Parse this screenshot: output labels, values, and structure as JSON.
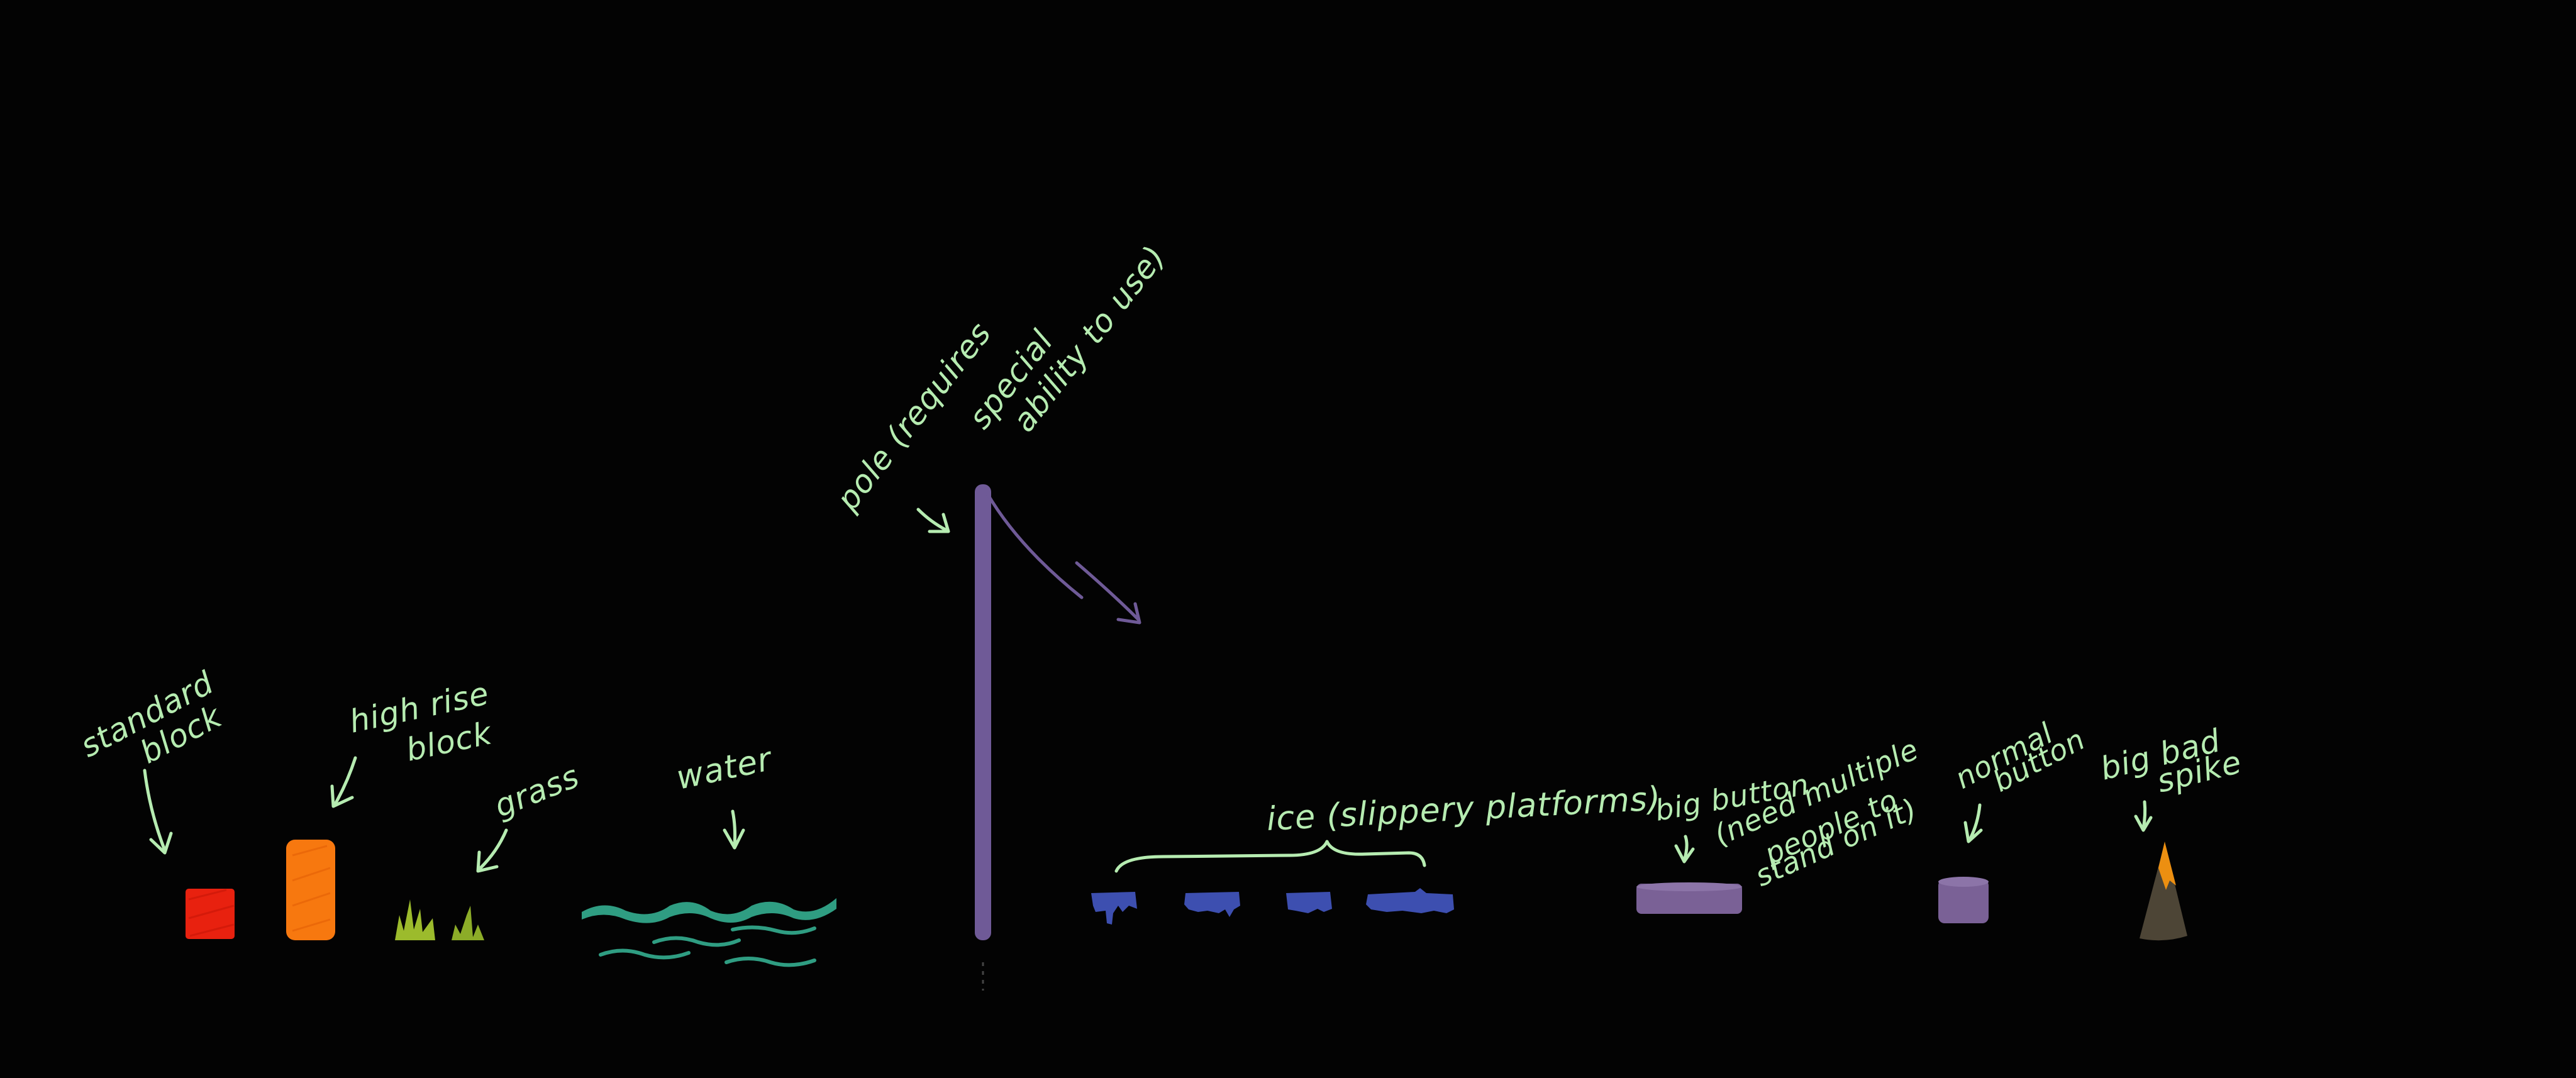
{
  "labels": {
    "standard_block_1": "standard",
    "standard_block_2": "block",
    "high_rise_1": "high rise",
    "high_rise_2": "block",
    "grass": "grass",
    "water": "water",
    "pole_1": "pole (requires",
    "pole_2": "special",
    "pole_3": "ability to use)",
    "ice": "ice (slippery platforms)",
    "big_button_1": "big button",
    "big_button_2": "(need multiple",
    "big_button_3": "people to",
    "big_button_4": "stand on it)",
    "normal_button_1": "normal",
    "normal_button_2": "button",
    "spike_1": "big bad",
    "spike_2": "spike"
  },
  "colors": {
    "background": "#030303",
    "annotation": "#b6ecb1",
    "standard_block": "#e8210f",
    "high_rise_block": "#f7780f",
    "grass": "#9cbb2c",
    "water": "#2f9d82",
    "pole": "#6f5a97",
    "ice": "#3d4fb0",
    "button": "#7a6196",
    "spike_base": "#4d4536",
    "spike_tip": "#ec8f11"
  }
}
